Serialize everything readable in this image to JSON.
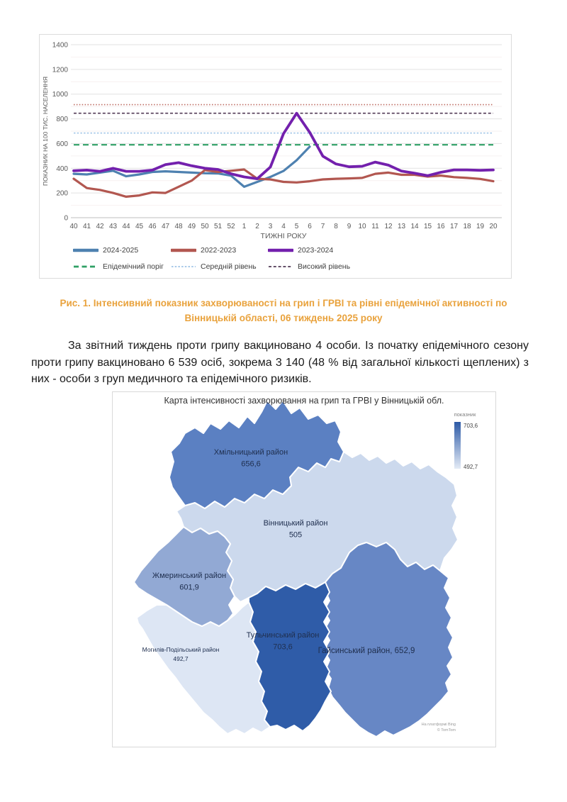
{
  "chart": {
    "y_axis_title": "ПОКАЗНИК НА 100 ТИС. НАСЕЛЕННЯ",
    "x_axis_title": "ТИЖНІ РОКУ"
  },
  "chart_data": {
    "type": "line",
    "title": "",
    "xlabel": "ТИЖНІ РОКУ",
    "ylabel": "ПОКАЗНИК НА 100 ТИС. НАСЕЛЕННЯ",
    "ylim": [
      0,
      1400
    ],
    "ytick_step": 200,
    "grid": true,
    "legend_position": "bottom",
    "categories": [
      "40",
      "41",
      "42",
      "43",
      "44",
      "45",
      "46",
      "47",
      "48",
      "49",
      "50",
      "51",
      "52",
      "1",
      "2",
      "3",
      "4",
      "5",
      "6",
      "7",
      "8",
      "9",
      "10",
      "11",
      "12",
      "13",
      "14",
      "15",
      "16",
      "17",
      "18",
      "19",
      "20"
    ],
    "series": [
      {
        "name": "2024-2025",
        "color": "#4e81b0",
        "width": 3.2,
        "values": [
          355,
          350,
          365,
          380,
          335,
          350,
          370,
          375,
          370,
          365,
          360,
          358,
          340,
          250,
          290,
          330,
          378,
          465,
          575,
          null,
          null,
          null,
          null,
          null,
          null,
          null,
          null,
          null,
          null,
          null,
          null,
          null,
          null
        ]
      },
      {
        "name": "2022-2023",
        "color": "#b25750",
        "width": 3.2,
        "values": [
          315,
          240,
          225,
          200,
          170,
          180,
          205,
          200,
          250,
          300,
          385,
          370,
          380,
          390,
          315,
          310,
          290,
          285,
          295,
          310,
          315,
          318,
          322,
          355,
          365,
          347,
          347,
          333,
          341,
          328,
          322,
          314,
          295
        ]
      },
      {
        "name": "2023-2024",
        "color": "#7320ad",
        "width": 3.8,
        "values": [
          380,
          385,
          375,
          400,
          375,
          375,
          385,
          430,
          445,
          420,
          400,
          390,
          355,
          330,
          315,
          410,
          680,
          845,
          690,
          498,
          435,
          412,
          416,
          450,
          425,
          377,
          360,
          340,
          367,
          387,
          387,
          383,
          387
        ]
      }
    ],
    "thresholds": [
      {
        "name": "Епідемічний поріг",
        "value": 590,
        "color": "#2fa065",
        "dash": "8 5",
        "width": 2.2
      },
      {
        "name": "Середній рівень",
        "value": 685,
        "color": "#9dc3e6",
        "dash": "2.5 2.2",
        "width": 1.6
      },
      {
        "name": "Високий рівень",
        "value": 845,
        "color": "#513a56",
        "dash": "4 2.8",
        "width": 1.6
      },
      {
        "name": "",
        "value": 915,
        "color": "#bd6a60",
        "dash": "1.5 2.4",
        "width": 1.6
      }
    ]
  },
  "caption": {
    "color": "#E9A23C",
    "line1": "Рис. 1. Інтенсивний показник захворюваності на грип і ГРВІ та рівні епідемічної активності  по",
    "line2": "Вінницькій області, 06 тиждень 2025 року"
  },
  "paragraph": {
    "text": "За звітний тиждень проти грипу вакциновано 4 особи. Із початку епідемічного сезону проти грипу вакциновано 6 539 осіб, зокрема 3 140 (48 % від загальної кількості щеплених) з них - особи з груп медичного та епідемічного ризиків."
  },
  "map": {
    "title": "Карта інтенсивності захворювання на грип та ГРВІ у Вінницькій обл.",
    "legend": {
      "label": "показник",
      "max": "703,6",
      "min": "492,7",
      "max_color": "#2d5aa6",
      "min_color": "#e4ebf6"
    },
    "label_color": "#203050",
    "regions": [
      {
        "id": "khmilnytskyi",
        "name": "Хмільницький район",
        "value": "656,6",
        "color": "#5b80c2"
      },
      {
        "id": "vinnytskyi",
        "name": "Вінницький район",
        "value": "505",
        "color": "#ccd9ed"
      },
      {
        "id": "zhmerynskyi",
        "name": "Жмеринський район",
        "value": "601,9",
        "color": "#92a9d4"
      },
      {
        "id": "mohyliv",
        "name": "Могилів-Подільський район",
        "value": "492,7",
        "color": "#dde6f4"
      },
      {
        "id": "tulchynskyi",
        "name": "Тульчинський район",
        "value": "703,6",
        "color": "#2f5ca8"
      },
      {
        "id": "haisynskyi",
        "name": "Гайсинський район, 652,9",
        "value": "",
        "color": "#6787c5"
      }
    ],
    "attribution_line1": "На платформі Bing",
    "attribution_line2": "© TomTom"
  }
}
